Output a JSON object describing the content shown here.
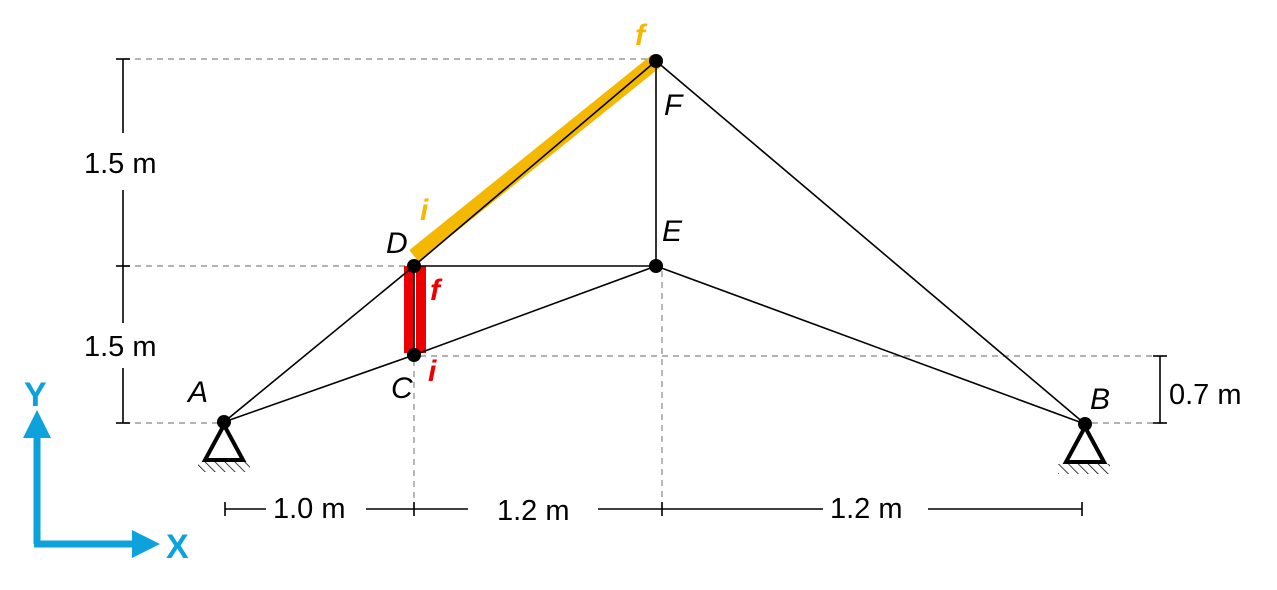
{
  "nodes": [
    {
      "id": "A",
      "label": "A"
    },
    {
      "id": "B",
      "label": "B"
    },
    {
      "id": "C",
      "label": "C"
    },
    {
      "id": "D",
      "label": "D"
    },
    {
      "id": "E",
      "label": "E"
    },
    {
      "id": "F",
      "label": "F"
    }
  ],
  "members": [
    [
      "A",
      "C"
    ],
    [
      "A",
      "D"
    ],
    [
      "C",
      "D"
    ],
    [
      "C",
      "E"
    ],
    [
      "D",
      "E"
    ],
    [
      "D",
      "F"
    ],
    [
      "E",
      "F"
    ],
    [
      "E",
      "B"
    ],
    [
      "F",
      "B"
    ]
  ],
  "highlighted_members": [
    {
      "from": "D",
      "to": "F",
      "color": "#f5b800",
      "start_label": "i",
      "end_label": "f"
    },
    {
      "from": "C",
      "to": "D",
      "color": "#ee0000",
      "start_label": "i",
      "end_label": "f"
    }
  ],
  "supports": [
    "A",
    "B"
  ],
  "dimensions": {
    "horizontal": [
      "1.0 m",
      "1.2 m",
      "1.2 m"
    ],
    "vertical_left": [
      "1.5 m",
      "1.5 m"
    ],
    "vertical_right": "0.7 m"
  },
  "axes": {
    "x": "X",
    "y": "Y",
    "color": "#0ea2dc"
  }
}
